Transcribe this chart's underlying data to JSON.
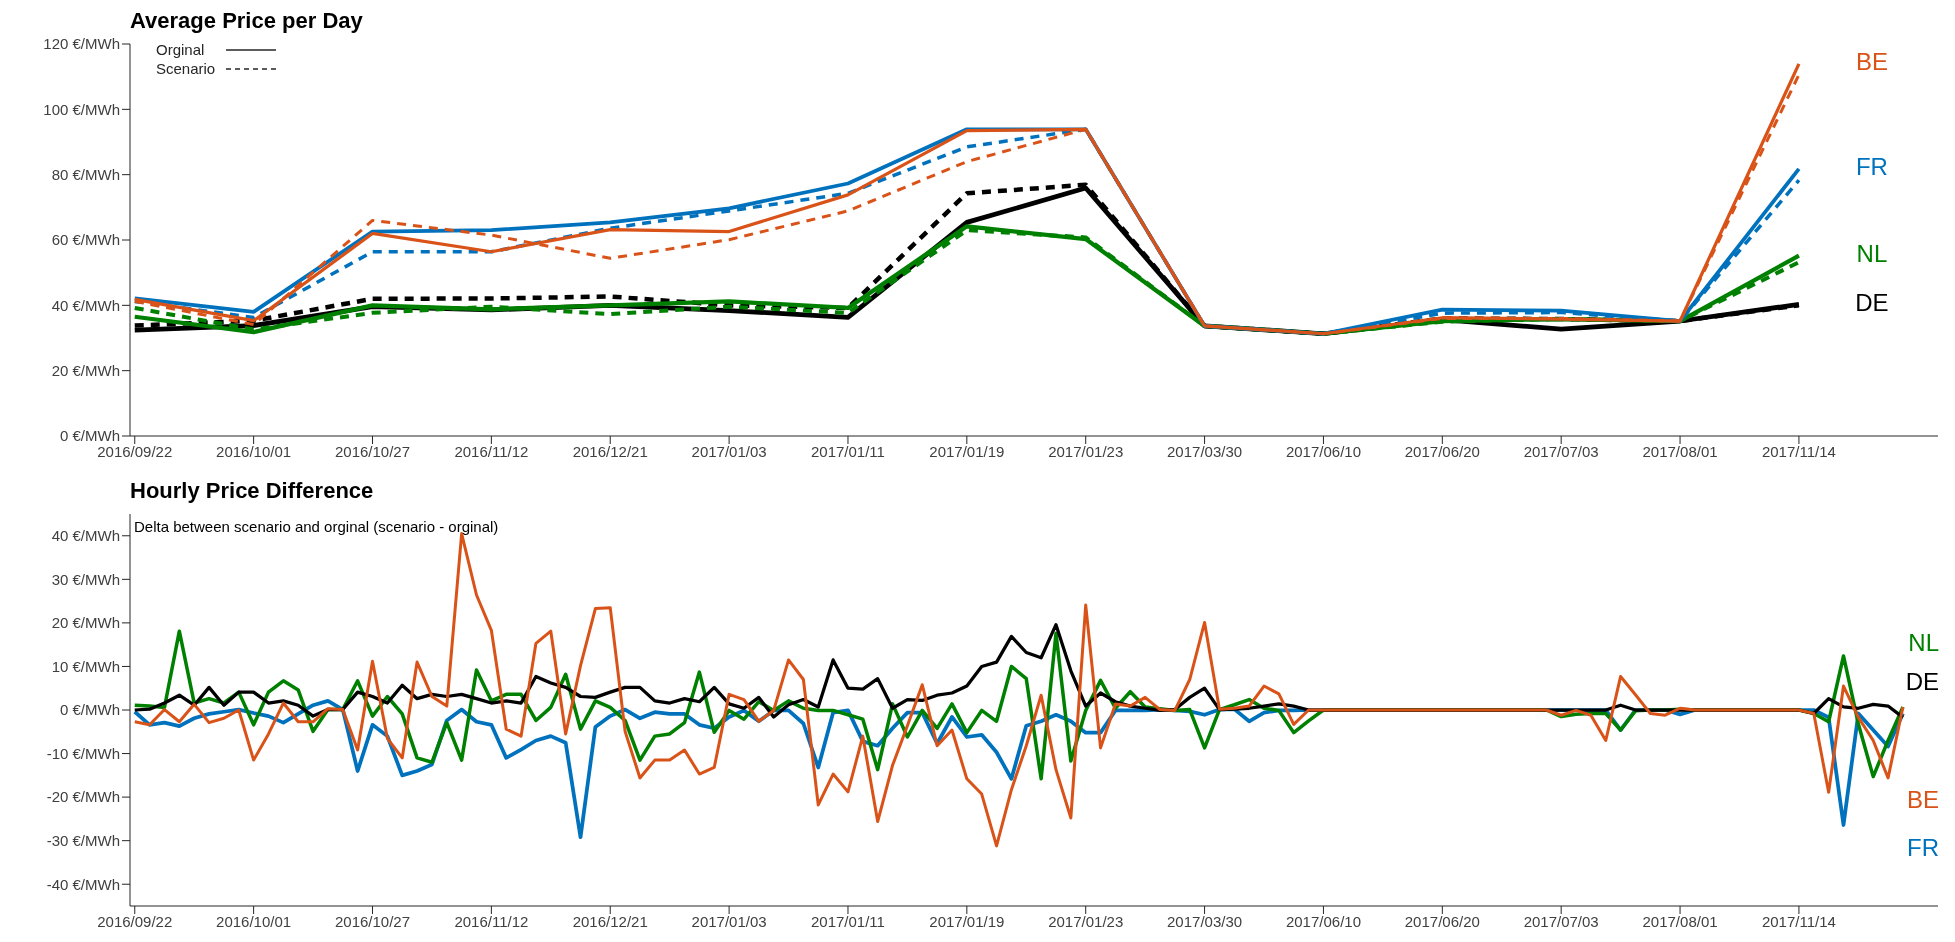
{
  "chart_data": [
    {
      "type": "line",
      "title": "Average Price per Day",
      "annotations": [
        "Orginal",
        "Scenario"
      ],
      "categories": [
        "2016/09/22",
        "2016/10/01",
        "2016/10/27",
        "2016/11/12",
        "2016/12/21",
        "2017/01/03",
        "2017/01/11",
        "2017/01/19",
        "2017/01/23",
        "2017/03/30",
        "2017/06/10",
        "2017/06/20",
        "2017/07/03",
        "2017/08/01",
        "2017/11/14"
      ],
      "ylim": [
        0,
        120
      ],
      "yticks": [
        {
          "value": 0,
          "label": "0 €/MWh"
        },
        {
          "value": 20,
          "label": "20 €/MWh"
        },
        {
          "value": 40,
          "label": "40 €/MWh"
        },
        {
          "value": 60,
          "label": "60 €/MWh"
        },
        {
          "value": 80,
          "label": "80 €/MWh"
        },
        {
          "value": 100,
          "label": "100 €/MWh"
        },
        {
          "value": 120,
          "label": "120 €/MWh"
        }
      ],
      "series": [
        {
          "name": "DE",
          "color": "#000000",
          "line_style": "solid",
          "values": [
            32.4,
            33.8,
            39.6,
            38.6,
            40,
            38.4,
            36.3,
            65.4,
            75.9,
            33.7,
            31.3,
            35.6,
            32.7,
            35.2,
            40.3
          ]
        },
        {
          "color": "#000000",
          "line_style": "dashed",
          "values": [
            33.8,
            35.3,
            42,
            42.1,
            42.7,
            40,
            39.2,
            74.3,
            76.9,
            33.7,
            31.3,
            36,
            35.8,
            35.2,
            40
          ]
        },
        {
          "name": "NL",
          "color": "#008000",
          "line_style": "solid",
          "values": [
            36.5,
            31.8,
            40,
            38.8,
            40,
            41.2,
            39.2,
            64.2,
            60.3,
            33.7,
            31.3,
            35.2,
            35.8,
            35.2,
            55.2
          ]
        },
        {
          "color": "#008000",
          "line_style": "dashed",
          "values": [
            39.2,
            32.6,
            37.7,
            39.6,
            37.3,
            39.6,
            37.7,
            63,
            60.8,
            33.7,
            31.3,
            35,
            35.8,
            35.2,
            53.2
          ]
        },
        {
          "name": "FR",
          "color": "#0072bd",
          "line_style": "solid",
          "values": [
            42.1,
            38,
            62.6,
            63,
            65.4,
            69.7,
            77.3,
            93.9,
            93.9,
            33.7,
            31.3,
            38.7,
            38.4,
            35.2,
            81.8
          ]
        },
        {
          "color": "#0072bd",
          "line_style": "dashed",
          "values": [
            41.2,
            36.3,
            56.4,
            56.4,
            63.6,
            68.9,
            74.3,
            88.5,
            93.9,
            33.7,
            31.3,
            37.6,
            37.8,
            35.2,
            78.3
          ]
        },
        {
          "name": "BE",
          "color": "#d95319",
          "line_style": "solid",
          "values": [
            41.8,
            35.3,
            62,
            56.4,
            63.2,
            62.6,
            73.8,
            93.5,
            93.9,
            33.7,
            31.3,
            36.2,
            35.8,
            35.2,
            113.9
          ]
        },
        {
          "color": "#d95319",
          "line_style": "dashed",
          "values": [
            41.2,
            34.1,
            66,
            61.5,
            54.4,
            60.1,
            68.9,
            84,
            93.9,
            33.7,
            31.3,
            36,
            36,
            35.2,
            110.6
          ]
        }
      ]
    },
    {
      "type": "line",
      "title": "Hourly Price Difference",
      "subtitle": "Delta between scenario and orginal (scenario - orginal)",
      "categories": [
        "2016/09/22",
        null,
        null,
        null,
        null,
        null,
        null,
        null,
        "2016/10/01",
        null,
        null,
        null,
        null,
        null,
        null,
        null,
        "2016/10/27",
        null,
        null,
        null,
        null,
        null,
        null,
        null,
        "2016/11/12",
        null,
        null,
        null,
        null,
        null,
        null,
        null,
        "2016/12/21",
        null,
        null,
        null,
        null,
        null,
        null,
        null,
        "2017/01/03",
        null,
        null,
        null,
        null,
        null,
        null,
        null,
        "2017/01/11",
        null,
        null,
        null,
        null,
        null,
        null,
        null,
        "2017/01/19",
        null,
        null,
        null,
        null,
        null,
        null,
        null,
        "2017/01/23",
        null,
        null,
        null,
        null,
        null,
        null,
        null,
        "2017/03/30",
        null,
        null,
        null,
        null,
        null,
        null,
        null,
        "2017/06/10",
        null,
        null,
        null,
        null,
        null,
        null,
        null,
        "2017/06/20",
        null,
        null,
        null,
        null,
        null,
        null,
        null,
        "2017/07/03",
        null,
        null,
        null,
        null,
        null,
        null,
        null,
        "2017/08/01",
        null,
        null,
        null,
        null,
        null,
        null,
        null,
        "2017/11/14",
        null,
        null,
        null,
        null,
        null,
        null,
        null
      ],
      "ylim": [
        -45,
        45
      ],
      "yticks": [
        {
          "value": -40,
          "label": "-40 €/MWh"
        },
        {
          "value": -30,
          "label": "-30 €/MWh"
        },
        {
          "value": -20,
          "label": "-20 €/MWh"
        },
        {
          "value": -10,
          "label": "-10 €/MWh"
        },
        {
          "value": 0,
          "label": "0 €/MWh"
        },
        {
          "value": 10,
          "label": "10 €/MWh"
        },
        {
          "value": 20,
          "label": "20 €/MWh"
        },
        {
          "value": 30,
          "label": "30 €/MWh"
        },
        {
          "value": 40,
          "label": "40 €/MWh"
        }
      ],
      "series": [
        {
          "name": "FR",
          "color": "#0072bd",
          "line_style": "solid",
          "values": [
            -0.4,
            -3.4,
            -2.9,
            -3.7,
            -1.9,
            -0.9,
            -0.4,
            0.1,
            -0.7,
            -1.4,
            -2.9,
            -0.9,
            1.1,
            2.1,
            0.1,
            -14,
            -3.4,
            -6,
            -15,
            -14,
            -12.5,
            -2.4,
            0.1,
            -2.7,
            -3.4,
            -11,
            -9.1,
            -7,
            -6,
            -7.5,
            -29.2,
            -3.9,
            -1.4,
            0.1,
            -1.9,
            -0.5,
            -0.9,
            -0.9,
            -3.4,
            -4.2,
            -1.6,
            -0.1,
            -2.6,
            -0.1,
            -0.1,
            -3.1,
            -13.2,
            -0.6,
            -0.1,
            -7.2,
            -8.2,
            -4.2,
            -0.6,
            -0.6,
            -7.7,
            -1.6,
            -6.2,
            -5.7,
            -9.7,
            -15.8,
            -3.6,
            -2.6,
            -1.1,
            -2.6,
            -5.2,
            -5.2,
            -0.1,
            -0.1,
            -0.1,
            0.1,
            -0.1,
            -0.3,
            -1.1,
            0.1,
            0.2,
            -2.6,
            -0.6,
            -0.1,
            -0.1,
            0,
            0,
            0,
            0,
            0,
            0,
            0,
            0,
            0,
            0,
            0,
            0,
            0,
            0,
            0,
            0,
            0,
            0,
            0,
            0,
            0,
            -4.6,
            0,
            0,
            0,
            -1,
            0,
            0,
            0,
            0,
            0,
            0,
            0,
            0,
            0,
            -1.7,
            -26.4,
            -0.8,
            -4.6,
            -8.4,
            -0.8
          ]
        },
        {
          "name": "NL",
          "color": "#008000",
          "line_style": "solid",
          "values": [
            1.1,
            0.9,
            0.6,
            18.1,
            1.6,
            2.6,
            1.6,
            4.1,
            -3.4,
            4.1,
            6.7,
            4.6,
            -4.9,
            0.1,
            0.1,
            6.7,
            -1.4,
            3.1,
            -0.9,
            -11,
            -12,
            -2.9,
            -11.5,
            9.2,
            2.1,
            3.6,
            3.6,
            -2.4,
            0.6,
            8.2,
            -4.4,
            2.1,
            0.6,
            -2.4,
            -11.5,
            -6,
            -5.5,
            -2.9,
            8.7,
            -5.1,
            -0.1,
            -2.1,
            1.9,
            -0.1,
            2.1,
            0.4,
            -0.1,
            -0.1,
            -1.1,
            -2.1,
            -13.7,
            1.4,
            -6.2,
            -0.1,
            -4.2,
            1.4,
            -5.2,
            -0.1,
            -2.6,
            10,
            7.2,
            -15.8,
            17.6,
            -11.7,
            -0.1,
            6.8,
            0.4,
            4.2,
            0.7,
            0.3,
            -0.1,
            0.1,
            -8.7,
            0.1,
            1.2,
            2.4,
            0.4,
            -0.1,
            -5.2,
            -2.5,
            0,
            0,
            0,
            0,
            0,
            0,
            0,
            0,
            0,
            0,
            0,
            0,
            0,
            0,
            0,
            0,
            -1.5,
            -1,
            -0.8,
            -0.8,
            -4.6,
            -0.2,
            0,
            0,
            0.2,
            0,
            0,
            0,
            0,
            0,
            0,
            0,
            0,
            -0.8,
            -2.7,
            12.4,
            -3.2,
            -15.3,
            -7,
            0.7
          ]
        },
        {
          "name": "DE",
          "color": "#000000",
          "line_style": "solid",
          "values": [
            0,
            0.2,
            1.6,
            3.4,
            1.1,
            5.2,
            1.1,
            4.1,
            4.1,
            1.6,
            2.1,
            1.1,
            -1.4,
            0.1,
            0.1,
            4.1,
            3.1,
            1.6,
            5.7,
            2.6,
            3.6,
            3.1,
            3.6,
            2.6,
            1.6,
            2.1,
            1.6,
            7.7,
            6.2,
            5.2,
            3.1,
            2.9,
            4.1,
            5.2,
            5.2,
            2.1,
            1.6,
            2.6,
            1.9,
            5.2,
            1.4,
            0.4,
            2.9,
            -1.6,
            1.2,
            2.4,
            0.7,
            11.5,
            5,
            4.8,
            7.2,
            0.4,
            2.4,
            2.2,
            3.4,
            3.9,
            5.5,
            10,
            11,
            16.9,
            13.2,
            12,
            19.6,
            9,
            0.9,
            3.9,
            1.9,
            0.9,
            0.4,
            -0.1,
            0.1,
            2.9,
            5,
            0.1,
            0.2,
            0.4,
            0.9,
            1.4,
            0.9,
            0,
            0,
            0,
            0,
            0,
            0,
            0,
            0,
            0,
            0,
            0,
            0,
            0,
            0,
            0,
            0,
            0,
            0,
            0,
            0,
            0,
            1.1,
            0,
            0,
            0,
            0,
            0,
            0,
            0,
            0,
            0,
            0,
            0,
            0,
            -0.8,
            2.6,
            0.7,
            0.4,
            1.3,
            0.9,
            -1.7
          ]
        },
        {
          "name": "BE",
          "color": "#d95319",
          "line_style": "solid",
          "values": [
            -2.7,
            -3.4,
            0.1,
            -2.7,
            1.3,
            -2.9,
            -1.9,
            0,
            -11.5,
            -5.5,
            1.6,
            -2.7,
            -2.7,
            0.3,
            0.1,
            -9.2,
            11.2,
            -6.5,
            -11,
            11,
            3.1,
            0.9,
            40.5,
            26.4,
            18.3,
            -4.4,
            -6,
            15.3,
            18.1,
            -5.5,
            10.2,
            23.3,
            23.5,
            -4.9,
            -15.6,
            -11.5,
            -11.5,
            -9.2,
            -14.7,
            -13.2,
            3.6,
            2.4,
            -2.6,
            -0.1,
            11.5,
            7,
            -21.8,
            -14.7,
            -18.8,
            -6,
            -25.6,
            -12.7,
            -3.6,
            5.8,
            -8.2,
            -4.6,
            -15.8,
            -19.3,
            -31.2,
            -18.3,
            -8.2,
            3.4,
            -13.7,
            -24.8,
            24.1,
            -8.7,
            1.4,
            0.9,
            2.9,
            0.1,
            -0.1,
            7,
            20.1,
            0.2,
            0.4,
            0.9,
            5.5,
            3.7,
            -3.3,
            0,
            0,
            0,
            0,
            0,
            0,
            0,
            0,
            0,
            0,
            0,
            0,
            0,
            0,
            0,
            0,
            0,
            -1.2,
            -0.1,
            -1.2,
            -7,
            7.7,
            3.5,
            -0.8,
            -1.2,
            0.4,
            0,
            0,
            0,
            0,
            0,
            0,
            0,
            0,
            -0.8,
            -18.9,
            5.5,
            -1.7,
            -7,
            -15.6,
            0.7
          ]
        }
      ]
    }
  ]
}
